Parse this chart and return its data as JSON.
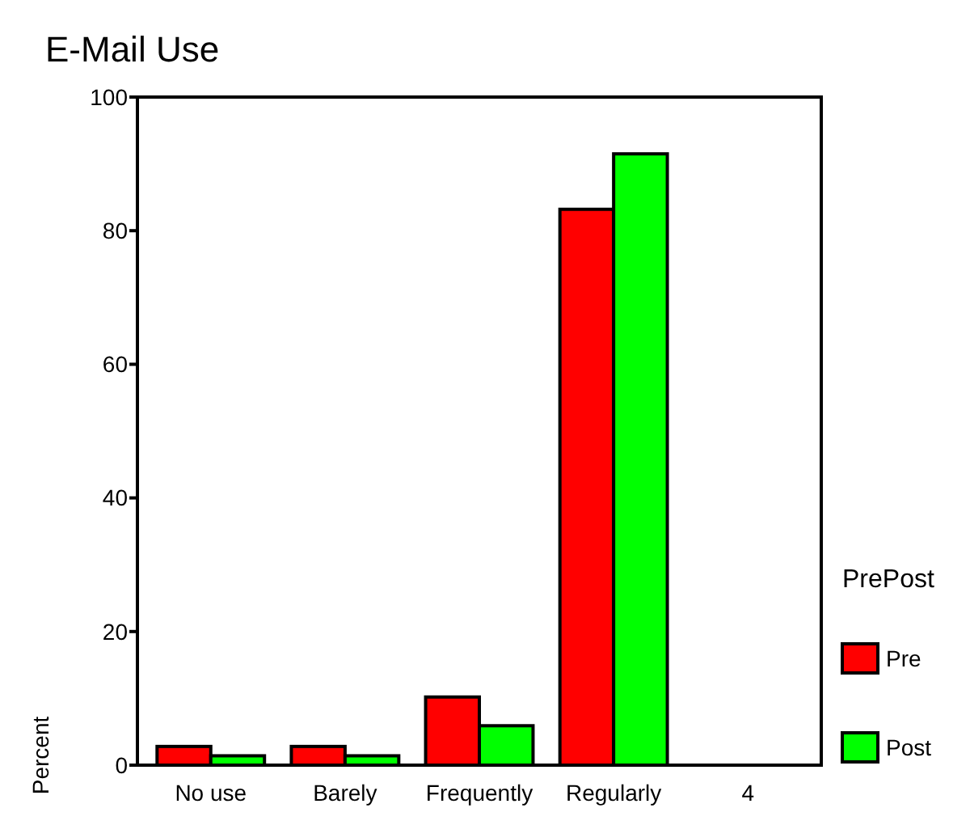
{
  "chart_data": {
    "type": "bar",
    "title": "E-Mail Use",
    "ylabel": "Percent",
    "legend_title": "PrePost",
    "categories": [
      "No use",
      "Barely",
      "Frequently",
      "Regularly",
      "4"
    ],
    "series": [
      {
        "name": "Pre",
        "color": "#ff0000",
        "values": [
          2.8,
          2.8,
          10.2,
          83.2,
          0
        ]
      },
      {
        "name": "Post",
        "color": "#00ff00",
        "values": [
          1.4,
          1.4,
          5.9,
          91.5,
          0
        ]
      }
    ],
    "ylim": [
      0,
      100
    ],
    "yticks": [
      0,
      20,
      40,
      60,
      80,
      100
    ],
    "grid": false,
    "legend": "right"
  }
}
